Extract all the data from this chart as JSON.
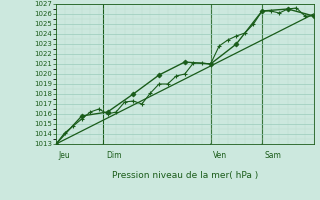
{
  "xlabel": "Pression niveau de la mer( hPa )",
  "ylim": [
    1013,
    1027
  ],
  "yticks": [
    1013,
    1014,
    1015,
    1016,
    1017,
    1018,
    1019,
    1020,
    1021,
    1022,
    1023,
    1024,
    1025,
    1026,
    1027
  ],
  "bg_color": "#cce8de",
  "grid_major_color": "#99ccbb",
  "grid_minor_color": "#bbddcc",
  "line_color": "#1a5c1a",
  "tick_label_color": "#1a5c1a",
  "xlabel_color": "#1a5c1a",
  "day_labels": [
    "Jeu",
    "Dim",
    "Ven",
    "Sam"
  ],
  "series1_x": [
    0,
    1,
    2,
    3,
    4,
    5,
    6,
    7,
    8,
    9,
    10,
    11,
    12,
    13,
    14,
    15,
    16,
    17,
    18,
    19,
    20,
    21,
    22,
    23,
    24,
    25,
    26,
    27,
    28,
    29,
    30
  ],
  "series1_y": [
    1013.0,
    1014.1,
    1014.8,
    1015.5,
    1016.2,
    1016.5,
    1016.0,
    1016.2,
    1017.2,
    1017.3,
    1017.0,
    1018.1,
    1019.0,
    1019.0,
    1019.8,
    1020.0,
    1021.1,
    1021.1,
    1021.0,
    1022.8,
    1023.4,
    1023.8,
    1024.1,
    1025.0,
    1026.3,
    1026.3,
    1026.1,
    1026.5,
    1026.6,
    1025.8,
    1025.8
  ],
  "series2_x": [
    0,
    3,
    6,
    9,
    12,
    15,
    18,
    21,
    24,
    27,
    30
  ],
  "series2_y": [
    1013.0,
    1015.8,
    1016.2,
    1018.0,
    1019.9,
    1021.2,
    1021.0,
    1023.0,
    1026.3,
    1026.5,
    1025.8
  ],
  "trend_x": [
    0,
    30
  ],
  "trend_y": [
    1013.0,
    1026.0
  ],
  "vline_positions": [
    3,
    12,
    21
  ],
  "xlim": [
    0,
    30
  ]
}
